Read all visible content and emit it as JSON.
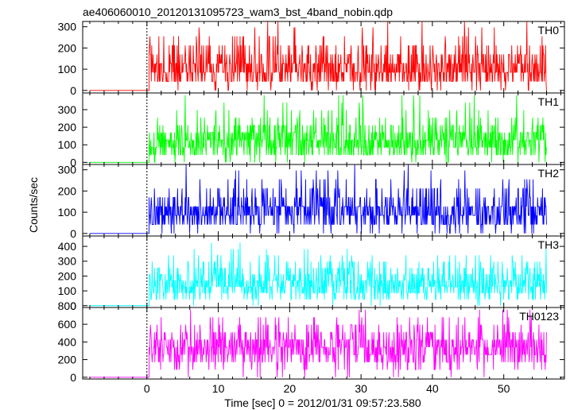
{
  "chart_data": {
    "type": "line",
    "title": "ae406060010_20120131095723_wam3_bst_4band_nobin.qdp",
    "xlabel": "Time [sec] 0 = 2012/01/31 09:57:23.580",
    "ylabel": "Counts/sec",
    "xlim": [
      -9.0,
      58.5
    ],
    "xticks": [
      0,
      10,
      20,
      30,
      40,
      50
    ],
    "grid": false,
    "legend": "none (panel labels at top-right of each panel)",
    "onset_time": 0.3,
    "end_time": 56.0,
    "panels": [
      {
        "name": "TH0",
        "color": "#ff0000",
        "ylim": [
          -12,
          325
        ],
        "yticks": [
          0,
          100,
          200,
          300
        ],
        "pre_level": 0,
        "count_levels": [
          0,
          42,
          85,
          127,
          170,
          212,
          255,
          297,
          340
        ],
        "level_weights": [
          0.04,
          0.2,
          0.28,
          0.23,
          0.13,
          0.07,
          0.03,
          0.015,
          0.005
        ]
      },
      {
        "name": "TH1",
        "color": "#00ff00",
        "ylim": [
          -12,
          395
        ],
        "yticks": [
          0,
          100,
          200,
          300
        ],
        "pre_level": 0,
        "count_levels": [
          0,
          42,
          85,
          127,
          170,
          212,
          255,
          297,
          340,
          382
        ],
        "level_weights": [
          0.03,
          0.16,
          0.26,
          0.24,
          0.15,
          0.08,
          0.04,
          0.02,
          0.01,
          0.005
        ]
      },
      {
        "name": "TH2",
        "color": "#0000ff",
        "ylim": [
          -12,
          325
        ],
        "yticks": [
          0,
          100,
          200,
          300
        ],
        "pre_level": 0,
        "count_levels": [
          0,
          42,
          85,
          127,
          170,
          212,
          255,
          297,
          340
        ],
        "level_weights": [
          0.04,
          0.2,
          0.28,
          0.23,
          0.13,
          0.07,
          0.03,
          0.015,
          0.005
        ]
      },
      {
        "name": "TH3",
        "color": "#00ffff",
        "ylim": [
          -12,
          470
        ],
        "yticks": [
          0,
          100,
          200,
          300,
          400
        ],
        "pre_level": 0,
        "count_levels": [
          0,
          42,
          85,
          127,
          170,
          212,
          255,
          297,
          340,
          382,
          425,
          467
        ],
        "level_weights": [
          0.02,
          0.1,
          0.19,
          0.22,
          0.18,
          0.12,
          0.08,
          0.05,
          0.025,
          0.012,
          0.006,
          0.003
        ]
      },
      {
        "name": "TH0123",
        "color": "#ff00ff",
        "ylim": [
          -20,
          790
        ],
        "yticks": [
          0,
          200,
          400,
          600
        ],
        "pre_level": 0,
        "count_levels": [
          0,
          85,
          170,
          255,
          340,
          425,
          510,
          595,
          680,
          765
        ],
        "level_weights": [
          0.01,
          0.05,
          0.13,
          0.2,
          0.22,
          0.18,
          0.11,
          0.06,
          0.03,
          0.01
        ]
      }
    ],
    "overlap_label": {
      "text": "800",
      "panel": 3,
      "yvalue": 0
    }
  }
}
